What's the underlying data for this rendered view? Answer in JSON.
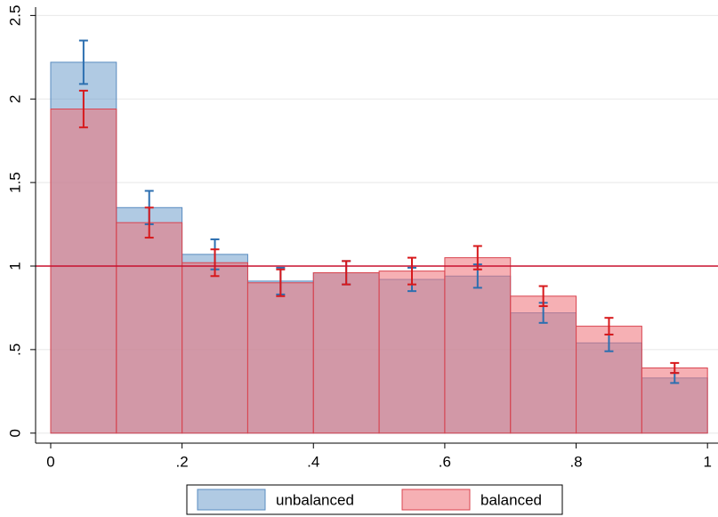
{
  "chart_data": {
    "type": "histogram",
    "bins": [
      0,
      0.1,
      0.2,
      0.3,
      0.4,
      0.5,
      0.6,
      0.7,
      0.8,
      0.9,
      1.0
    ],
    "series": [
      {
        "name": "unbalanced",
        "color": "#6f9fcc",
        "edge_color": "#5a8cc0",
        "error_color": "#2c6fb0",
        "values": [
          2.22,
          1.35,
          1.07,
          0.91,
          0.96,
          0.92,
          0.94,
          0.72,
          0.54,
          0.33
        ],
        "errors": [
          0.13,
          0.1,
          0.09,
          0.08,
          0.07,
          0.07,
          0.07,
          0.06,
          0.05,
          0.03
        ]
      },
      {
        "name": "balanced",
        "color": "#ee6f77",
        "edge_color": "#d9444f",
        "error_color": "#d7191c",
        "values": [
          1.94,
          1.26,
          1.02,
          0.9,
          0.96,
          0.97,
          1.05,
          0.82,
          0.64,
          0.39
        ],
        "errors": [
          0.11,
          0.09,
          0.08,
          0.08,
          0.07,
          0.08,
          0.07,
          0.06,
          0.05,
          0.03
        ]
      }
    ],
    "hline": 1,
    "hline_color": "#c8102e",
    "xlim": [
      -0.023,
      1.016
    ],
    "ylim": [
      -0.06,
      2.55
    ],
    "xticks": [
      0,
      {
        "value": 0.2,
        "label": ".2"
      },
      {
        "value": 0.4,
        "label": ".4"
      },
      {
        "value": 0.6,
        "label": ".6"
      },
      {
        "value": 0.8,
        "label": ".8"
      },
      1
    ],
    "yticks": [
      0,
      {
        "value": 0.5,
        "label": ".5"
      },
      1,
      1.5,
      2,
      2.5
    ],
    "grid": true,
    "legend": "bottom"
  }
}
